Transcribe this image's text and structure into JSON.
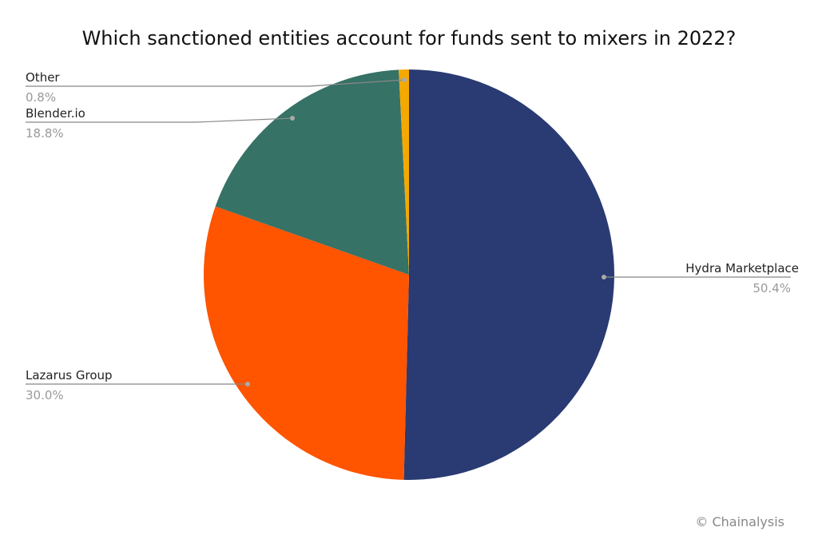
{
  "chart_data": {
    "type": "pie",
    "title": "Which sanctioned entities account for funds sent to mixers in 2022?",
    "start_angle": "12 o'clock",
    "direction": "clockwise",
    "slices": [
      {
        "label": "Hydra Marketplace",
        "value": 50.4,
        "value_label": "50.4%",
        "color": "#2a3a72"
      },
      {
        "label": "Lazarus Group",
        "value": 30.0,
        "value_label": "30.0%",
        "color": "#ff5400"
      },
      {
        "label": "Blender.io",
        "value": 18.8,
        "value_label": "18.8%",
        "color": "#367266"
      },
      {
        "label": "Other",
        "value": 0.8,
        "value_label": "0.8%",
        "color": "#f5a800"
      }
    ]
  },
  "credit": "© Chainalysis"
}
